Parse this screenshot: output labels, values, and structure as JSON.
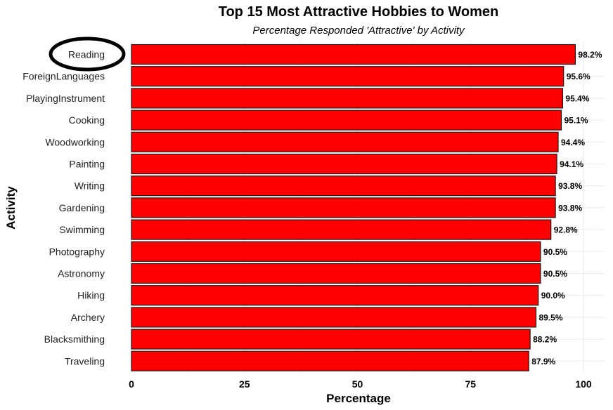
{
  "chart_data": {
    "type": "bar",
    "orientation": "horizontal",
    "title": "Top 15 Most Attractive Hobbies to Women",
    "subtitle": "Percentage Responded 'Attractive' by Activity",
    "xlabel": "Percentage",
    "ylabel": "Activity",
    "xlim": [
      0,
      100
    ],
    "xticks": [
      0,
      25,
      50,
      75,
      100
    ],
    "grid": true,
    "bar_color": "#ff0000",
    "bar_outline_color": "#1a1a1a",
    "highlighted_category": "Reading",
    "categories": [
      "Reading",
      "ForeignLanguages",
      "PlayingInstrument",
      "Cooking",
      "Woodworking",
      "Painting",
      "Writing",
      "Gardening",
      "Swimming",
      "Photography",
      "Astronomy",
      "Hiking",
      "Archery",
      "Blacksmithing",
      "Traveling"
    ],
    "values": [
      98.2,
      95.6,
      95.4,
      95.1,
      94.4,
      94.1,
      93.8,
      93.8,
      92.8,
      90.5,
      90.5,
      90.0,
      89.5,
      88.2,
      87.9
    ],
    "value_labels": [
      "98.2%",
      "95.6%",
      "95.4%",
      "95.1%",
      "94.4%",
      "94.1%",
      "93.8%",
      "93.8%",
      "92.8%",
      "90.5%",
      "90.5%",
      "90.0%",
      "89.5%",
      "88.2%",
      "87.9%"
    ]
  }
}
